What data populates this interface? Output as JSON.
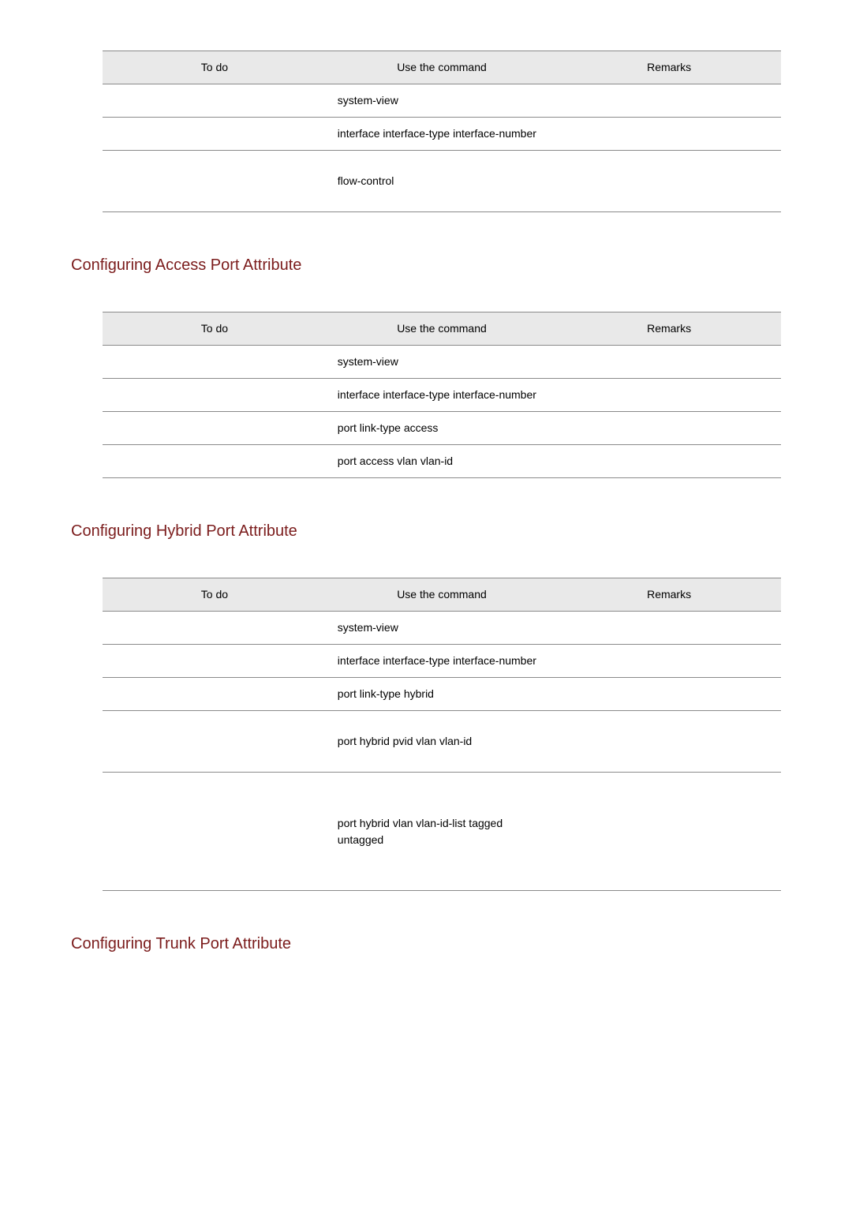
{
  "headers": {
    "todo": "To do",
    "command": "Use the command",
    "remarks": "Remarks"
  },
  "table1": {
    "rows": [
      {
        "todo": "",
        "command": "system-view",
        "remarks": ""
      },
      {
        "todo": "",
        "command": "interface  interface-type interface-number",
        "remarks": ""
      },
      {
        "todo": "",
        "command": "flow-control",
        "remarks": ""
      }
    ]
  },
  "section2": {
    "heading": "Configuring Access Port Attribute"
  },
  "table2": {
    "rows": [
      {
        "todo": "",
        "command": "system-view",
        "remarks": ""
      },
      {
        "todo": "",
        "command": "interface  interface-type interface-number",
        "remarks": ""
      },
      {
        "todo": "",
        "command": "port link-type  access",
        "remarks": ""
      },
      {
        "todo": "",
        "command": "port access vlan   vlan-id",
        "remarks": ""
      }
    ]
  },
  "section3": {
    "heading": "Configuring Hybrid Port Attribute"
  },
  "table3": {
    "rows": [
      {
        "todo": "",
        "command": "system-view",
        "remarks": ""
      },
      {
        "todo": "",
        "command": "interface  interface-type interface-number",
        "remarks": ""
      },
      {
        "todo": "",
        "command": "port link-type  hybrid",
        "remarks": ""
      },
      {
        "todo": "",
        "command": "port hybrid pvid vlan    vlan-id",
        "remarks": ""
      },
      {
        "todo": "",
        "command": "port hybrid  vlan  vlan-id-list  tagged   untagged",
        "remarks": ""
      }
    ]
  },
  "section4": {
    "heading": "Configuring Trunk Port Attribute"
  }
}
